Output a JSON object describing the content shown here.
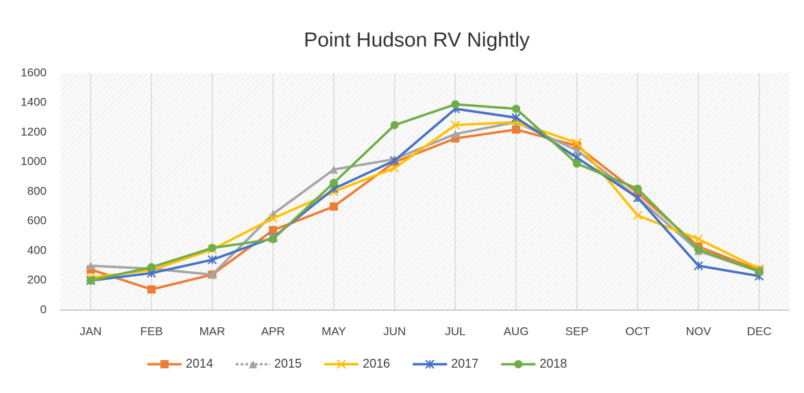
{
  "chart_data": {
    "type": "line",
    "title": "Point Hudson RV Nightly",
    "categories": [
      "JAN",
      "FEB",
      "MAR",
      "APR",
      "MAY",
      "JUN",
      "JUL",
      "AUG",
      "SEP",
      "OCT",
      "NOV",
      "DEC"
    ],
    "series": [
      {
        "name": "2014",
        "color": "#ed7d31",
        "marker": "square",
        "values": [
          275,
          140,
          240,
          540,
          700,
          1000,
          1160,
          1220,
          1110,
          790,
          430,
          270
        ]
      },
      {
        "name": "2015",
        "color": "#a5a5a5",
        "marker": "triangle",
        "values": [
          300,
          280,
          240,
          650,
          950,
          1020,
          1190,
          1270,
          1080,
          760,
          400,
          260
        ]
      },
      {
        "name": "2016",
        "color": "#ffc000",
        "marker": "x",
        "values": [
          220,
          270,
          410,
          620,
          800,
          960,
          1250,
          1270,
          1130,
          640,
          480,
          280
        ]
      },
      {
        "name": "2017",
        "color": "#4472c4",
        "marker": "asterisk",
        "values": [
          200,
          250,
          340,
          490,
          820,
          1010,
          1360,
          1300,
          1030,
          760,
          300,
          230
        ]
      },
      {
        "name": "2018",
        "color": "#70ad47",
        "marker": "circle",
        "values": [
          200,
          290,
          420,
          480,
          860,
          1250,
          1390,
          1360,
          990,
          820,
          410,
          260
        ]
      }
    ],
    "ylim": [
      0,
      1600
    ],
    "yticks": [
      0,
      200,
      400,
      600,
      800,
      1000,
      1200,
      1400,
      1600
    ],
    "grid": true
  }
}
